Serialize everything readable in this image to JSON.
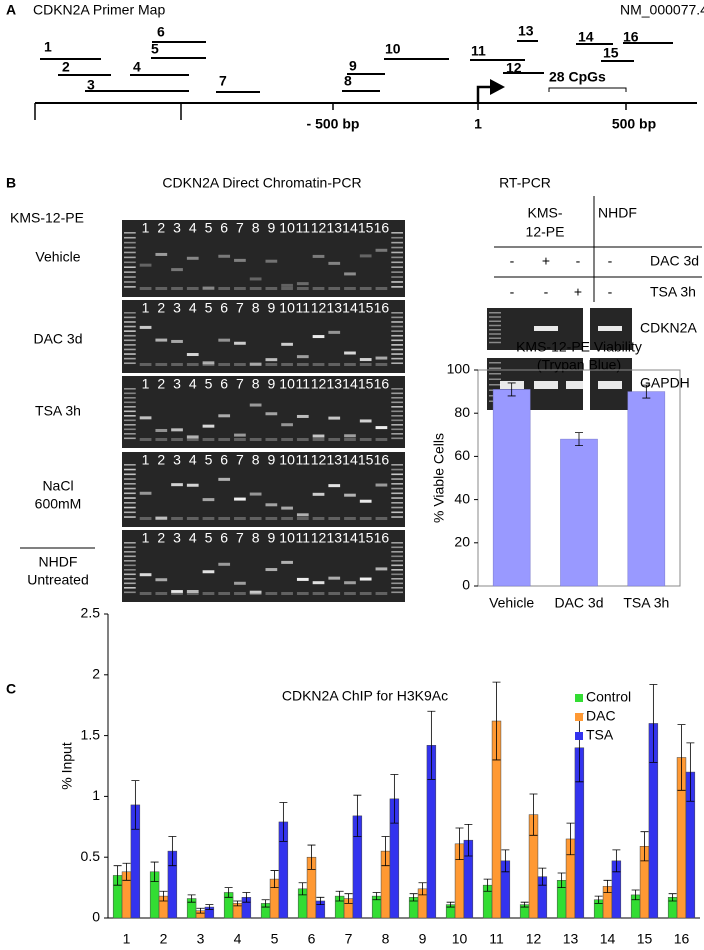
{
  "panel_a": {
    "label": "A",
    "title": "CDKN2A Primer Map",
    "accession": "NM_000077.4",
    "primers": [
      "1",
      "2",
      "3",
      "4",
      "5",
      "6",
      "7",
      "8",
      "9",
      "10",
      "11",
      "12",
      "13",
      "14",
      "15",
      "16"
    ],
    "scale_labels": [
      "- 500 bp",
      "1",
      "500 bp"
    ],
    "cpg_label": "28 CpGs"
  },
  "panel_b": {
    "label": "B",
    "title": "CDKN2A Direct Chromatin-PCR",
    "cell_line": "KMS-12-PE",
    "conditions": [
      [
        "Vehicle"
      ],
      [
        "DAC 3d"
      ],
      [
        "TSA 3h"
      ],
      [
        "NaCl",
        "600mM"
      ],
      [
        "NHDF",
        "Untreated"
      ]
    ],
    "lanes": [
      "1",
      "2",
      "3",
      "4",
      "5",
      "6",
      "7",
      "8",
      "9",
      "10",
      "11",
      "12",
      "13",
      "14",
      "15",
      "16"
    ],
    "rt_pcr": {
      "title": "RT-PCR",
      "cell_line": [
        "KMS-",
        "12-PE"
      ],
      "control_line": "NHDF",
      "treatments": [
        {
          "name": "DAC 3d",
          "marks": [
            "-",
            "+",
            "-",
            "-"
          ]
        },
        {
          "name": "TSA 3h",
          "marks": [
            "-",
            "-",
            "+",
            "-"
          ]
        }
      ],
      "genes": [
        "CDKN2A",
        "GAPDH"
      ]
    }
  },
  "panel_c": {
    "label": "C"
  },
  "chart_data": [
    {
      "type": "bar",
      "title": "KMS-12-PE Viability",
      "subtitle": "(Trypan Blue)",
      "ylabel": "% Viable Cells",
      "categories": [
        "Vehicle",
        "DAC 3d",
        "TSA 3h"
      ],
      "values": [
        91,
        68,
        90
      ],
      "errors": [
        3,
        3,
        3
      ],
      "color": "#9999ff",
      "ylim": [
        0,
        100
      ],
      "yticks": [
        0,
        20,
        40,
        60,
        80,
        100
      ]
    },
    {
      "type": "bar",
      "title": "CDKN2A ChIP for H3K9Ac",
      "ylabel": "% Input",
      "categories": [
        "1",
        "2",
        "3",
        "4",
        "5",
        "6",
        "7",
        "8",
        "9",
        "10",
        "11",
        "12",
        "13",
        "14",
        "15",
        "16"
      ],
      "series": [
        {
          "name": "Control",
          "color": "#33dd33",
          "values": [
            0.35,
            0.38,
            0.16,
            0.21,
            0.12,
            0.24,
            0.18,
            0.18,
            0.17,
            0.11,
            0.27,
            0.11,
            0.31,
            0.15,
            0.19,
            0.17
          ],
          "errors": [
            0.08,
            0.08,
            0.03,
            0.04,
            0.03,
            0.05,
            0.04,
            0.03,
            0.03,
            0.02,
            0.05,
            0.02,
            0.06,
            0.03,
            0.04,
            0.03
          ]
        },
        {
          "name": "DAC",
          "color": "#ff9933",
          "values": [
            0.38,
            0.18,
            0.06,
            0.12,
            0.32,
            0.5,
            0.16,
            0.55,
            0.24,
            0.61,
            1.62,
            0.85,
            0.65,
            0.26,
            0.59,
            1.32
          ],
          "errors": [
            0.07,
            0.04,
            0.02,
            0.02,
            0.07,
            0.1,
            0.04,
            0.12,
            0.05,
            0.13,
            0.32,
            0.17,
            0.13,
            0.05,
            0.12,
            0.27
          ]
        },
        {
          "name": "TSA",
          "color": "#3333ee",
          "values": [
            0.93,
            0.55,
            0.09,
            0.17,
            0.79,
            0.14,
            0.84,
            0.98,
            1.42,
            0.64,
            0.47,
            0.34,
            1.4,
            0.47,
            1.6,
            1.2
          ],
          "errors": [
            0.2,
            0.12,
            0.02,
            0.04,
            0.16,
            0.03,
            0.17,
            0.2,
            0.28,
            0.13,
            0.09,
            0.07,
            0.28,
            0.09,
            0.32,
            0.24
          ]
        }
      ],
      "ylim": [
        0,
        2.5
      ],
      "yticks": [
        0,
        0.5,
        1,
        1.5,
        2,
        2.5
      ],
      "legend": "top-right"
    }
  ]
}
